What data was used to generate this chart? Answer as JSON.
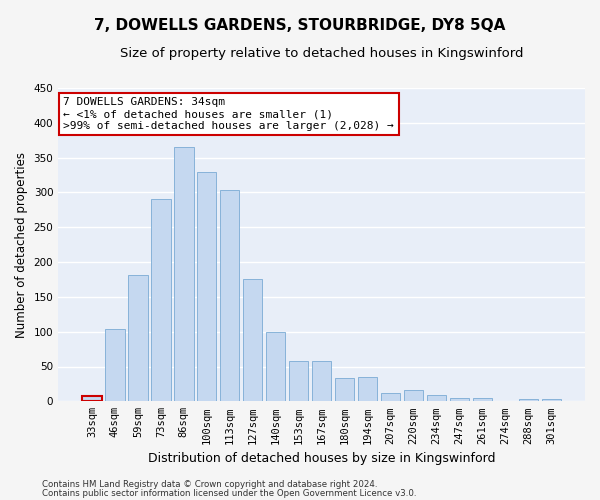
{
  "title": "7, DOWELLS GARDENS, STOURBRIDGE, DY8 5QA",
  "subtitle": "Size of property relative to detached houses in Kingswinford",
  "xlabel": "Distribution of detached houses by size in Kingswinford",
  "ylabel": "Number of detached properties",
  "categories": [
    "33sqm",
    "46sqm",
    "59sqm",
    "73sqm",
    "86sqm",
    "100sqm",
    "113sqm",
    "127sqm",
    "140sqm",
    "153sqm",
    "167sqm",
    "180sqm",
    "194sqm",
    "207sqm",
    "220sqm",
    "234sqm",
    "247sqm",
    "261sqm",
    "274sqm",
    "288sqm",
    "301sqm"
  ],
  "values": [
    8,
    104,
    181,
    291,
    366,
    330,
    303,
    176,
    100,
    58,
    58,
    33,
    35,
    12,
    16,
    9,
    5,
    5,
    1,
    4,
    3
  ],
  "bar_color": "#c5d8f0",
  "bar_edge_color": "#7aabd4",
  "highlight_edge_color": "#cc0000",
  "annotation_line1": "7 DOWELLS GARDENS: 34sqm",
  "annotation_line2": "← <1% of detached houses are smaller (1)",
  "annotation_line3": ">99% of semi-detached houses are larger (2,028) →",
  "annotation_box_color": "#ffffff",
  "annotation_box_edge_color": "#cc0000",
  "ylim": [
    0,
    450
  ],
  "yticks": [
    0,
    50,
    100,
    150,
    200,
    250,
    300,
    350,
    400,
    450
  ],
  "footer_line1": "Contains HM Land Registry data © Crown copyright and database right 2024.",
  "footer_line2": "Contains public sector information licensed under the Open Government Licence v3.0.",
  "bg_color": "#e8eef8",
  "fig_bg_color": "#f5f5f5",
  "grid_color": "#ffffff",
  "title_fontsize": 11,
  "subtitle_fontsize": 9.5,
  "tick_fontsize": 7.5,
  "ylabel_fontsize": 8.5,
  "xlabel_fontsize": 9,
  "annotation_fontsize": 8
}
